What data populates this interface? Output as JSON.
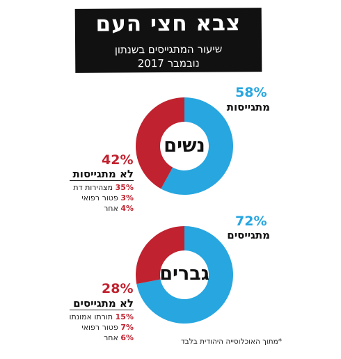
{
  "header": {
    "title": "צבא חצי העם",
    "subtitle_line1": "שיעור המתגייסים בשנתון",
    "subtitle_line2": "נובמבר 2017"
  },
  "footnote": "*מתוך האוכלוסייה היהודית בלבד",
  "colors": {
    "enlist": "#27a6e0",
    "not_enlist": "#c0222f"
  },
  "chart_data": [
    {
      "type": "pie",
      "title": "נשים",
      "slices": [
        {
          "label": "מתגייסות",
          "value": 58,
          "display": "58%"
        },
        {
          "label": "לא מתגייסות",
          "value": 42,
          "display": "42%"
        }
      ],
      "breakdown": [
        {
          "value": "35%",
          "label": "מצהירות דת"
        },
        {
          "value": "3%",
          "label": "פטור רפואי"
        },
        {
          "value": "4%",
          "label": "אחר"
        }
      ]
    },
    {
      "type": "pie",
      "title": "גברים",
      "slices": [
        {
          "label": "מתגייסים",
          "value": 72,
          "display": "72%"
        },
        {
          "label": "לא מתגייסים",
          "value": 28,
          "display": "28%"
        }
      ],
      "breakdown": [
        {
          "value": "15%",
          "label": "תורתו אמונתו"
        },
        {
          "value": "7%",
          "label": "פטור רפואי"
        },
        {
          "value": "6%",
          "label": "אחר"
        }
      ]
    }
  ]
}
